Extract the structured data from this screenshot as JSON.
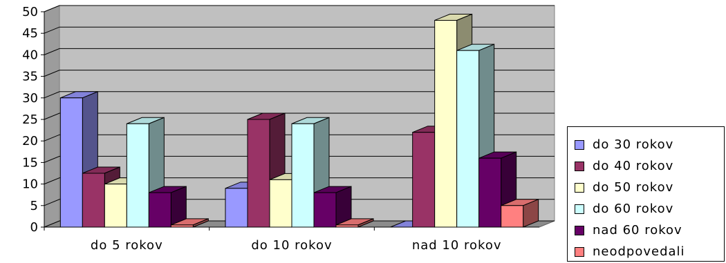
{
  "chart_data": {
    "type": "bar",
    "categories": [
      "do 5 rokov",
      "do 10 rokov",
      "nad 10 rokov"
    ],
    "ylim": [
      0,
      50
    ],
    "yticks": [
      0,
      5,
      10,
      15,
      20,
      25,
      30,
      35,
      40,
      45,
      50
    ],
    "grid": true,
    "legend_position": "right",
    "series": [
      {
        "name": "do 30 rokov",
        "values": [
          30,
          9,
          0
        ]
      },
      {
        "name": "do 40 rokov",
        "values": [
          12.5,
          25,
          22
        ]
      },
      {
        "name": "do 50 rokov",
        "values": [
          10,
          11,
          48
        ]
      },
      {
        "name": "do 60 rokov",
        "values": [
          24,
          24,
          41
        ]
      },
      {
        "name": "nad 60 rokov",
        "values": [
          8,
          8,
          16
        ]
      },
      {
        "name": "neodpovedali",
        "values": [
          0.5,
          0.5,
          5
        ]
      }
    ],
    "colors": [
      "#9999ff",
      "#993366",
      "#ffffcc",
      "#ccffff",
      "#660066",
      "#ff8080"
    ]
  }
}
